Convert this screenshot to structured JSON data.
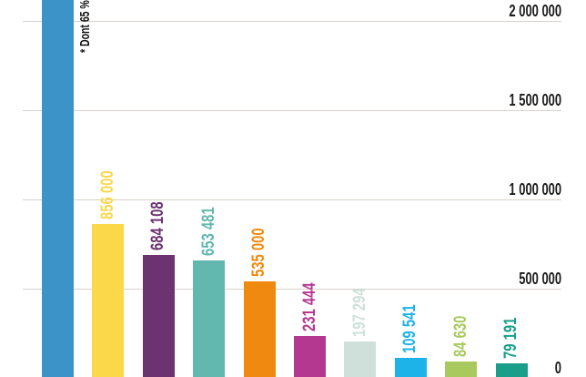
{
  "chart_data": {
    "type": "bar",
    "title": "",
    "orientation": "vertical",
    "background": "#ffffff",
    "gridline_color": "#d8d3cb",
    "axis_text_color": "#1c1c1c",
    "y_axis": {
      "side": "right",
      "grid": true,
      "visible_range": [
        0,
        2120000
      ],
      "ticks": [
        {
          "label": "2 000 000",
          "value": 2000000
        },
        {
          "label": "1 500 000",
          "value": 1500000
        },
        {
          "label": "1 000 000",
          "value": 1000000
        },
        {
          "label": "500 000",
          "value": 500000
        },
        {
          "label": "0",
          "value": 0
        }
      ]
    },
    "annotation": {
      "text": "* Dont 65 %",
      "color": "#111111",
      "attached_to_bar_index": 0,
      "rotated": true
    },
    "bars": [
      {
        "value": null,
        "value_label": "",
        "color": "#3b93c8",
        "cut_off_top": true
      },
      {
        "value": 856000,
        "value_label": "856 000",
        "color": "#fbd84a"
      },
      {
        "value": 684108,
        "value_label": "684 108",
        "color": "#6b3370"
      },
      {
        "value": 653481,
        "value_label": "653 481",
        "color": "#62b8ae"
      },
      {
        "value": 535000,
        "value_label": "535 000",
        "color": "#f0890f"
      },
      {
        "value": 231444,
        "value_label": "231 444",
        "color": "#b43890"
      },
      {
        "value": 197294,
        "value_label": "197 294",
        "color": "#cfe0db"
      },
      {
        "value": 109541,
        "value_label": "109 541",
        "color": "#1db3e8"
      },
      {
        "value": 84630,
        "value_label": "84 630",
        "color": "#a7c95e"
      },
      {
        "value": 79191,
        "value_label": "79 191",
        "color": "#199e89"
      }
    ]
  }
}
